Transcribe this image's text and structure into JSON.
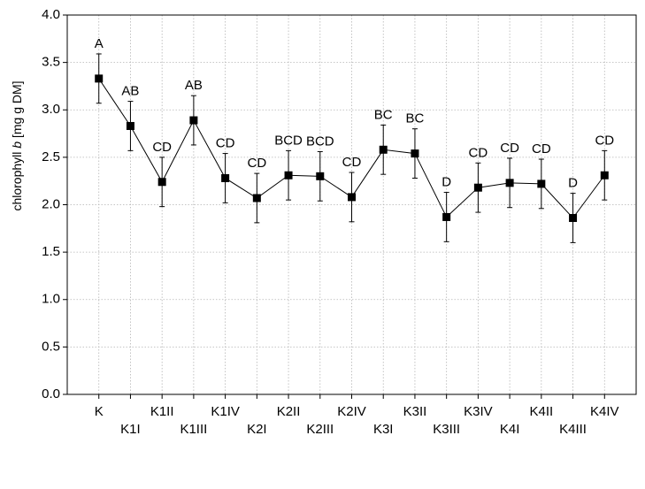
{
  "chart_data": {
    "type": "line",
    "ylabel": "chlorophyll b [mg g DM]",
    "ylabel_parts": [
      "chlorophyll ",
      "b",
      " [mg g DM]"
    ],
    "ylim": [
      0.0,
      4.0
    ],
    "yticks": [
      "0.0",
      "0.5",
      "1.0",
      "1.5",
      "2.0",
      "2.5",
      "3.0",
      "3.5",
      "4.0"
    ],
    "grid": true,
    "categories": [
      "K",
      "K1I",
      "K1II",
      "K1III",
      "K1IV",
      "K2I",
      "K2II",
      "K2III",
      "K2IV",
      "K3I",
      "K3II",
      "K3III",
      "K3IV",
      "K4I",
      "K4II",
      "K4III",
      "K4IV"
    ],
    "values": [
      3.33,
      2.83,
      2.24,
      2.89,
      2.28,
      2.07,
      2.31,
      2.3,
      2.08,
      2.58,
      2.54,
      1.87,
      2.18,
      2.23,
      2.22,
      1.86,
      2.31
    ],
    "error_upper": [
      3.59,
      3.09,
      2.5,
      3.15,
      2.54,
      2.33,
      2.57,
      2.56,
      2.34,
      2.84,
      2.8,
      2.13,
      2.44,
      2.49,
      2.48,
      2.12,
      2.57
    ],
    "error_lower": [
      3.07,
      2.57,
      1.98,
      2.63,
      2.02,
      1.81,
      2.05,
      2.04,
      1.82,
      2.32,
      2.28,
      1.61,
      1.92,
      1.97,
      1.96,
      1.6,
      2.05
    ],
    "group_labels": [
      "A",
      "AB",
      "CD",
      "AB",
      "CD",
      "CD",
      "BCD",
      "BCD",
      "CD",
      "BC",
      "BC",
      "D",
      "CD",
      "CD",
      "CD",
      "D",
      "CD"
    ],
    "colors": {
      "series": "#000000",
      "grid": "#b4b4b4"
    }
  }
}
